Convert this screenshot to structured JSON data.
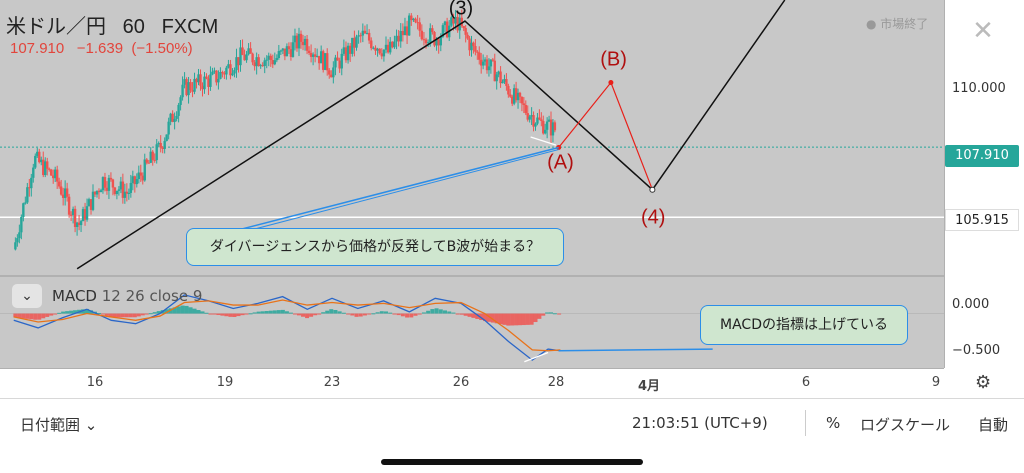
{
  "header": {
    "symbol": "米ドル／円",
    "interval": "60",
    "broker": "FXCM",
    "last_price": "107.910",
    "change": "−1.639",
    "change_pct": "(−1.50%)",
    "market_status": "● 市場終了"
  },
  "controls": {
    "close_glyph": "✕",
    "collapse_glyph": "⌄",
    "settings_glyph": "⚙"
  },
  "macd": {
    "label": "MACD",
    "params": "12 26 close 9"
  },
  "annotations": {
    "divergence_note": "ダイバージェンスから価格が反発してB波が始まる？",
    "macd_note": "MACDの指標は上げている"
  },
  "bottom_bar": {
    "date_range": "日付範囲 ⌄",
    "time": "21:03:51 (UTC+9)",
    "percent": "%",
    "log_scale": "ログスケール",
    "auto": "自動"
  },
  "colors": {
    "up": "#26a69a",
    "down": "#ef5350",
    "red_line": "#e8201a",
    "blue_line": "#2c8ee8",
    "black_line": "#111111",
    "wave_red": "#b01010"
  },
  "chart_data": [
    {
      "type": "candlestick",
      "title": "米ドル／円 60 FXCM",
      "y_ticks": [
        "110.000",
        "105.915"
      ],
      "y_tick_values": [
        110.0
      ],
      "ylim": [
        104.3,
        112.1
      ],
      "x_ticks": [
        "16",
        "19",
        "23",
        "26",
        "28",
        "4月",
        "6",
        "9"
      ],
      "price_lines": [
        {
          "name": "last",
          "value": 107.91,
          "label": "107.910",
          "style": "dotted",
          "color": "#26a69a"
        },
        {
          "name": "horizontal",
          "value": 105.915,
          "label": "105.915",
          "style": "solid",
          "color": "#ffffff"
        }
      ],
      "close_path": [
        [
          0,
          105.0
        ],
        [
          0.25,
          107.6
        ],
        [
          0.52,
          107.0
        ],
        [
          0.8,
          105.7
        ],
        [
          1.1,
          107.0
        ],
        [
          1.4,
          106.6
        ],
        [
          1.8,
          107.9
        ],
        [
          2.1,
          109.6
        ],
        [
          2.5,
          109.9
        ],
        [
          2.8,
          110.5
        ],
        [
          3.2,
          110.4
        ],
        [
          3.55,
          111.0
        ],
        [
          3.9,
          110.1
        ],
        [
          4.25,
          111.1
        ],
        [
          4.55,
          110.6
        ],
        [
          4.8,
          111.4
        ],
        [
          5.1,
          111.0
        ],
        [
          5.35,
          111.5
        ],
        [
          5.55,
          110.7
        ],
        [
          5.85,
          110.0
        ],
        [
          6.15,
          109.1
        ],
        [
          6.4,
          108.6
        ],
        [
          6.6,
          108.4
        ]
      ],
      "wave_labels": [
        {
          "text": "(3)",
          "x": 5.4,
          "y": 111.85
        },
        {
          "text": "(A)",
          "x": 6.65,
          "y": 107.45
        },
        {
          "text": "(B)",
          "x": 7.25,
          "y": 110.4
        },
        {
          "text": "(4)",
          "x": 7.7,
          "y": 105.9
        }
      ],
      "black_lines": [
        [
          [
            0.78,
            104.45
          ],
          [
            5.45,
            111.5
          ],
          [
            7.69,
            106.7
          ],
          [
            9.25,
            112.1
          ]
        ]
      ],
      "red_path": [
        [
          6.63,
          107.9
        ],
        [
          7.22,
          109.75
        ],
        [
          7.69,
          106.7
        ]
      ],
      "blue_line": [
        [
          6.63,
          107.9
        ],
        [
          2.25,
          105.25
        ]
      ],
      "white_arrow_price": [
        [
          6.28,
          108.2
        ],
        [
          6.6,
          107.97
        ]
      ],
      "x_tick_positions": [
        1.0,
        2.6,
        3.9,
        5.4,
        6.6,
        7.65,
        9.5,
        11.0
      ]
    },
    {
      "type": "line",
      "title": "MACD 12 26 close 9",
      "y_ticks": [
        "0.000",
        "−0.500"
      ],
      "y_tick_values": [
        0,
        -0.5
      ],
      "ylim": [
        -0.62,
        0.42
      ],
      "series": [
        {
          "name": "MACD",
          "color": "#2a66c8",
          "values": [
            [
              0,
              -0.08
            ],
            [
              0.3,
              -0.17
            ],
            [
              0.6,
              -0.05
            ],
            [
              0.9,
              0.05
            ],
            [
              1.2,
              -0.08
            ],
            [
              1.5,
              -0.12
            ],
            [
              1.8,
              0.0
            ],
            [
              2.1,
              0.22
            ],
            [
              2.4,
              0.15
            ],
            [
              2.7,
              0.06
            ],
            [
              3.0,
              0.12
            ],
            [
              3.3,
              0.2
            ],
            [
              3.6,
              0.05
            ],
            [
              3.9,
              0.18
            ],
            [
              4.2,
              0.06
            ],
            [
              4.5,
              0.15
            ],
            [
              4.8,
              0.02
            ],
            [
              5.1,
              0.18
            ],
            [
              5.4,
              0.12
            ],
            [
              5.7,
              -0.08
            ],
            [
              6.0,
              -0.33
            ],
            [
              6.3,
              -0.55
            ],
            [
              6.5,
              -0.42
            ],
            [
              6.65,
              -0.44
            ]
          ]
        },
        {
          "name": "Signal",
          "color": "#e8731a",
          "values": [
            [
              0,
              -0.04
            ],
            [
              0.3,
              -0.1
            ],
            [
              0.6,
              -0.07
            ],
            [
              0.9,
              0.0
            ],
            [
              1.2,
              -0.04
            ],
            [
              1.5,
              -0.08
            ],
            [
              1.8,
              -0.03
            ],
            [
              2.1,
              0.13
            ],
            [
              2.4,
              0.15
            ],
            [
              2.7,
              0.1
            ],
            [
              3.0,
              0.1
            ],
            [
              3.3,
              0.16
            ],
            [
              3.6,
              0.1
            ],
            [
              3.9,
              0.13
            ],
            [
              4.2,
              0.1
            ],
            [
              4.5,
              0.12
            ],
            [
              4.8,
              0.07
            ],
            [
              5.1,
              0.12
            ],
            [
              5.4,
              0.13
            ],
            [
              5.7,
              0.0
            ],
            [
              6.0,
              -0.2
            ],
            [
              6.3,
              -0.43
            ],
            [
              6.5,
              -0.44
            ],
            [
              6.65,
              -0.43
            ]
          ]
        }
      ],
      "histogram_sign_pattern": "mixed",
      "white_arrow_macd": [
        [
          6.2,
          -0.57
        ],
        [
          6.5,
          -0.46
        ]
      ],
      "blue_line": [
        [
          6.63,
          -0.44
        ],
        [
          8.4,
          -0.42
        ]
      ]
    }
  ]
}
